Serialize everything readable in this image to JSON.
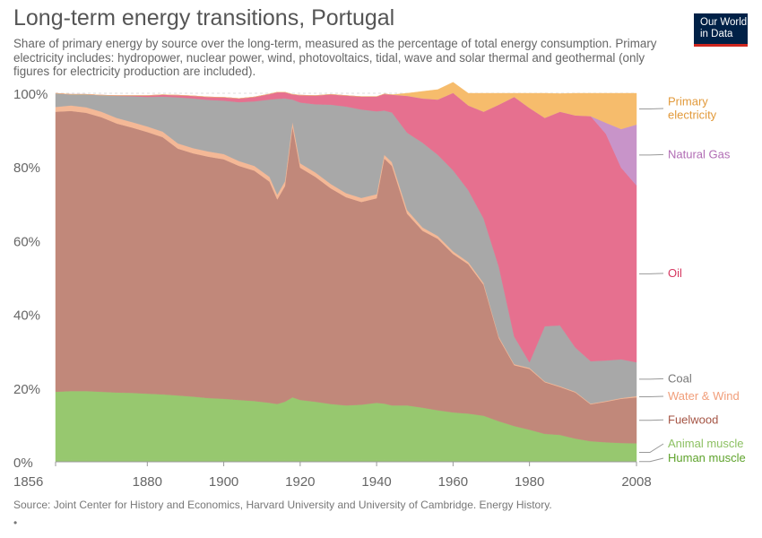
{
  "header": {
    "title": "Long-term energy transitions, Portugal",
    "subtitle": "Share of primary energy by source over the long-term, measured as the percentage of total energy consumption. Primary electricity includes: hydropower, nuclear power, wind, photovoltaics, tidal, wave and solar thermal and geothermal (only figures for electricity production are included).",
    "logo_line1": "Our World",
    "logo_line2": "in Data"
  },
  "footer": {
    "source": "Source: Joint Center for History and Economics, Harvard University and University of Cambridge. Energy History.",
    "marker": "•"
  },
  "chart_data": {
    "type": "area",
    "stacked": true,
    "percent": true,
    "title": "Long-term energy transitions, Portugal",
    "xlim": [
      1856,
      2008
    ],
    "ylim": [
      0,
      100
    ],
    "x_ticks": [
      "1856",
      "1880",
      "1900",
      "1920",
      "1940",
      "1960",
      "1980",
      "2008"
    ],
    "x_tick_values": [
      1856,
      1880,
      1900,
      1920,
      1940,
      1960,
      1980,
      2008
    ],
    "y_ticks": [
      "0%",
      "20%",
      "40%",
      "60%",
      "80%",
      "100%"
    ],
    "y_tick_values": [
      0,
      20,
      40,
      60,
      80,
      100
    ],
    "legend_position": "right",
    "x": [
      1856,
      1860,
      1864,
      1868,
      1872,
      1876,
      1880,
      1884,
      1888,
      1892,
      1896,
      1900,
      1904,
      1908,
      1912,
      1914,
      1916,
      1918,
      1920,
      1924,
      1928,
      1932,
      1936,
      1940,
      1942,
      1944,
      1948,
      1952,
      1956,
      1960,
      1964,
      1968,
      1972,
      1976,
      1980,
      1984,
      1988,
      1992,
      1996,
      2000,
      2004,
      2008
    ],
    "series": [
      {
        "name": "Human muscle",
        "color": "#97c86f",
        "values": [
          0.5,
          0.5,
          0.5,
          0.5,
          0.5,
          0.5,
          0.5,
          0.5,
          0.5,
          0.5,
          0.5,
          0.5,
          0.5,
          0.5,
          0.5,
          0.5,
          0.5,
          0.5,
          0.5,
          0.5,
          0.5,
          0.5,
          0.5,
          0.5,
          0.5,
          0.5,
          0.5,
          0.5,
          0.5,
          0.4,
          0.3,
          0.3,
          0.2,
          0.2,
          0.1,
          0.1,
          0.1,
          0.1,
          0.1,
          0.1,
          0.1,
          0.1
        ]
      },
      {
        "name": "Animal muscle",
        "color": "#97c86f",
        "values": [
          18.5,
          18.7,
          18.7,
          18.5,
          18.3,
          18.2,
          18.0,
          17.8,
          17.5,
          17.2,
          16.8,
          16.6,
          16.3,
          16.0,
          15.5,
          15.2,
          15.8,
          17.0,
          16.3,
          15.8,
          15.2,
          14.8,
          15.0,
          15.5,
          15.3,
          14.8,
          14.8,
          14.2,
          13.5,
          13.0,
          12.8,
          12.2,
          10.8,
          9.5,
          8.6,
          7.5,
          7.2,
          6.2,
          5.5,
          5.2,
          5.0,
          4.9
        ]
      },
      {
        "name": "Fuelwood",
        "color": "#c1887a",
        "values": [
          76.0,
          76.0,
          75.5,
          74.5,
          73.0,
          72.0,
          71.0,
          69.8,
          67.0,
          66.0,
          65.5,
          65.0,
          63.5,
          62.5,
          60.0,
          55.5,
          58.5,
          73.5,
          63.0,
          61.0,
          58.5,
          56.5,
          55.0,
          55.5,
          66.5,
          65.0,
          52.0,
          48.0,
          46.5,
          43.0,
          40.5,
          35.5,
          22.5,
          16.5,
          16.5,
          14.0,
          13.0,
          12.5,
          10.0,
          11.0,
          12.0,
          12.5
        ]
      },
      {
        "name": "Water & Wind",
        "color": "#f4b896",
        "values": [
          1.3,
          1.5,
          1.5,
          1.5,
          1.5,
          1.5,
          1.5,
          1.5,
          1.4,
          1.4,
          1.4,
          1.4,
          1.3,
          1.3,
          1.3,
          1.3,
          1.3,
          1.3,
          1.2,
          1.2,
          1.2,
          1.1,
          1.1,
          1.1,
          1.0,
          1.0,
          1.0,
          0.9,
          0.8,
          0.7,
          0.6,
          0.5,
          0.4,
          0.3,
          0.3,
          0.2,
          0.2,
          0.2,
          0.2,
          0.2,
          0.2,
          0.3
        ]
      },
      {
        "name": "Coal",
        "color": "#a8a8a8",
        "values": [
          3.7,
          3.0,
          3.5,
          4.5,
          6.0,
          7.0,
          8.0,
          9.5,
          12.5,
          13.5,
          14.0,
          14.5,
          16.0,
          17.5,
          21.0,
          26.0,
          22.5,
          6.0,
          16.5,
          18.5,
          21.5,
          23.5,
          24.0,
          22.5,
          12.0,
          13.5,
          21.0,
          23.0,
          22.0,
          22.0,
          19.5,
          17.5,
          19.0,
          7.5,
          1.5,
          15.0,
          16.5,
          12.0,
          11.5,
          11.0,
          10.5,
          9.2
        ]
      },
      {
        "name": "Oil",
        "color": "#e6708f",
        "values": [
          0.0,
          0.0,
          0.0,
          0.0,
          0.1,
          0.2,
          0.4,
          0.5,
          0.6,
          0.7,
          0.8,
          0.9,
          1.0,
          1.2,
          1.5,
          1.8,
          1.7,
          1.4,
          2.0,
          2.4,
          2.8,
          3.0,
          3.5,
          4.0,
          4.5,
          4.8,
          10.0,
          12.0,
          15.0,
          21.0,
          23.0,
          29.0,
          44.0,
          65.0,
          69.0,
          56.5,
          58.0,
          63.0,
          66.5,
          61.5,
          52.0,
          48.0
        ]
      },
      {
        "name": "Natural Gas",
        "color": "#c894c9",
        "values": [
          0,
          0,
          0,
          0,
          0,
          0,
          0,
          0,
          0,
          0,
          0,
          0,
          0,
          0,
          0,
          0,
          0,
          0,
          0,
          0,
          0,
          0,
          0,
          0,
          0,
          0,
          0,
          0,
          0,
          0,
          0,
          0,
          0,
          0,
          0,
          0,
          0,
          0,
          0,
          3.0,
          10.5,
          16.5
        ]
      },
      {
        "name": "Primary electricity",
        "color": "#f6bc6c",
        "values": [
          0,
          0,
          0,
          0,
          0,
          0,
          0,
          0,
          0,
          0,
          0,
          0,
          0,
          0,
          0,
          0,
          0,
          0,
          0,
          0,
          0,
          0,
          0,
          0,
          0,
          0,
          0.7,
          1.9,
          2.7,
          2.9,
          3.3,
          5.0,
          3.1,
          1.0,
          4.0,
          6.7,
          4.9,
          6.0,
          6.2,
          8.0,
          9.7,
          8.5
        ]
      }
    ],
    "legend": [
      {
        "label_lines": [
          "Primary",
          "electricity"
        ],
        "color": "#e29a3b"
      },
      {
        "label_lines": [
          "Natural Gas"
        ],
        "color": "#b16cb4"
      },
      {
        "label_lines": [
          "Oil"
        ],
        "color": "#d63760"
      },
      {
        "label_lines": [
          "Coal"
        ],
        "color": "#777777"
      },
      {
        "label_lines": [
          "Water & Wind"
        ],
        "color": "#f19e7a"
      },
      {
        "label_lines": [
          "Fuelwood"
        ],
        "color": "#a55545"
      },
      {
        "label_lines": [
          "Animal muscle"
        ],
        "color": "#8dc163"
      },
      {
        "label_lines": [
          "Human muscle"
        ],
        "color": "#5fa32c"
      }
    ]
  }
}
